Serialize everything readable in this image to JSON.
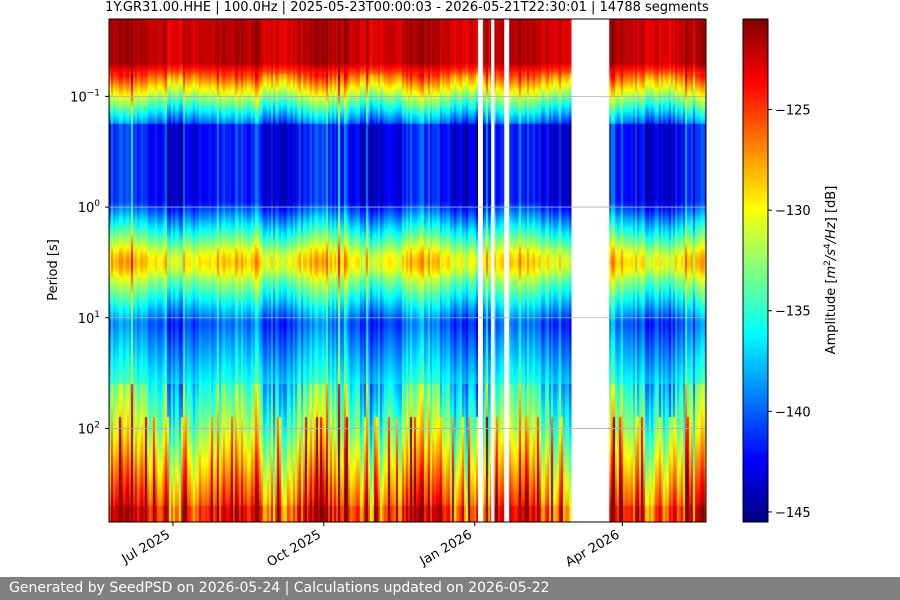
{
  "chart_data": {
    "type": "heatmap",
    "title": "1Y.GR31.00.HHE | 100.0Hz | 2025-05-23T00:00:03 - 2026-05-21T22:30:01 | 14788 segments",
    "ylabel": "Period [s]",
    "y_scale": "log",
    "y_inverted": true,
    "ylim": [
      0.02,
      700
    ],
    "y_ticks": [
      {
        "value": 0.1,
        "base": "10",
        "exp": "−1"
      },
      {
        "value": 1,
        "base": "10",
        "exp": "0"
      },
      {
        "value": 10,
        "base": "10",
        "exp": "1"
      },
      {
        "value": 100,
        "base": "10",
        "exp": "2"
      }
    ],
    "xlim": [
      "2025-05-23",
      "2026-05-22"
    ],
    "x_ticks": [
      {
        "date": "2025-07-01",
        "label": "Jul 2025"
      },
      {
        "date": "2025-10-01",
        "label": "Oct 2025"
      },
      {
        "date": "2026-01-01",
        "label": "Jan 2026"
      },
      {
        "date": "2026-04-01",
        "label": "Apr 2026"
      }
    ],
    "gaps": [
      [
        "2026-01-03",
        "2026-01-06"
      ],
      [
        "2026-01-11",
        "2026-01-13"
      ],
      [
        "2026-01-19",
        "2026-01-22"
      ],
      [
        "2026-03-01",
        "2026-03-24"
      ]
    ],
    "colorbar": {
      "label": "Amplitude [m²/s⁴/Hz] [dB]",
      "label_parts": [
        "Amplitude [",
        "m",
        "2",
        "/s",
        "4",
        "/Hz",
        "] [dB]"
      ],
      "colormap": "jet",
      "range": [
        -145.5,
        -120.5
      ],
      "ticks": [
        -125,
        -130,
        -135,
        -140,
        -145
      ],
      "tick_labels": [
        "−125",
        "−130",
        "−135",
        "−140",
        "−145"
      ]
    },
    "grid": true
  },
  "footer": "Generated by SeedPSD on 2026-05-24 | Calculations updated on 2026-05-22"
}
